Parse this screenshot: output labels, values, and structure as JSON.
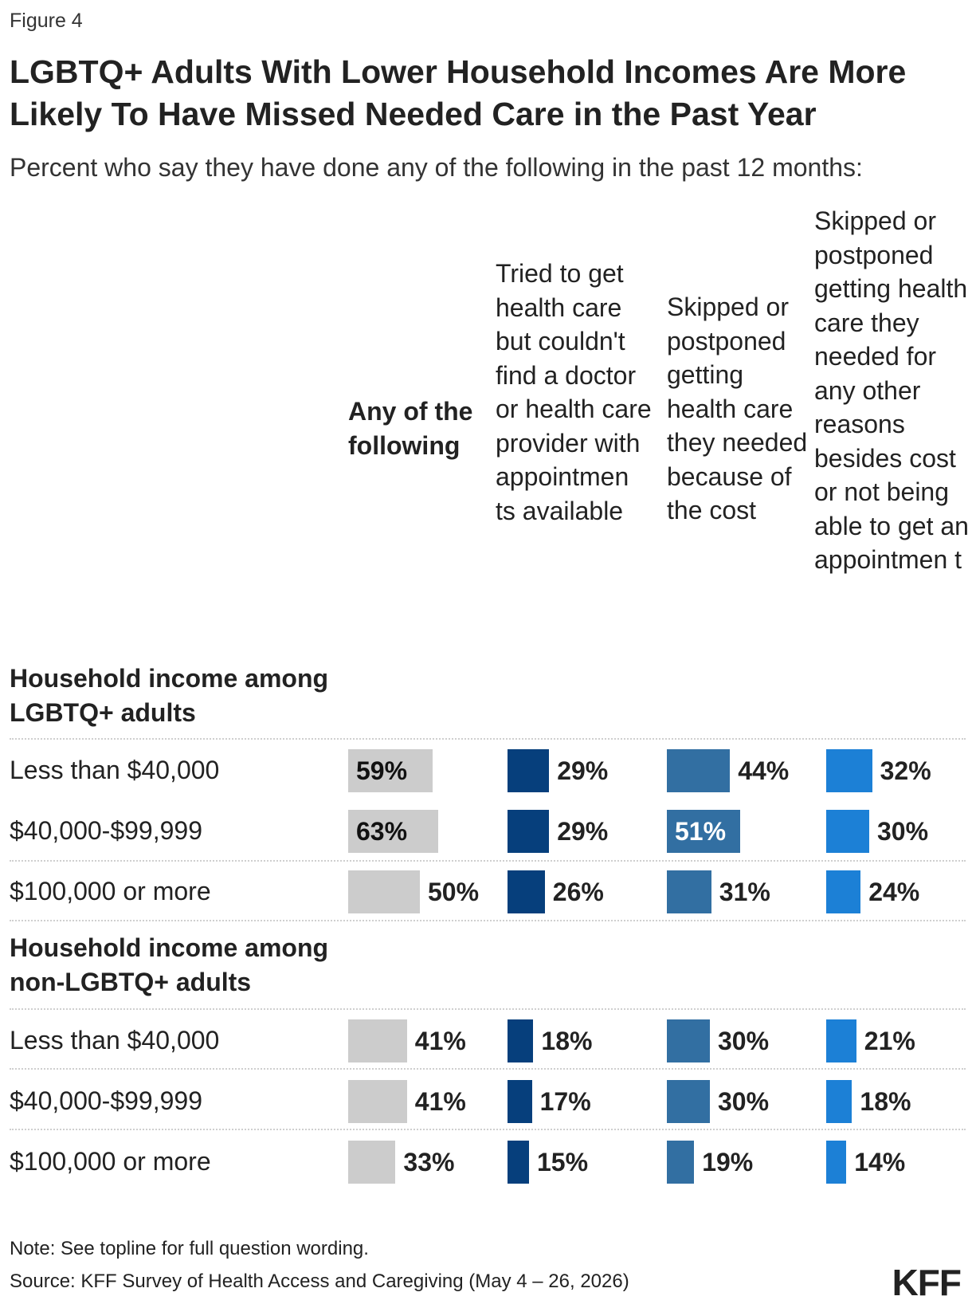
{
  "figure_label": "Figure 4",
  "title": "LGBTQ+ Adults With Lower Household Incomes Are More Likely To Have Missed Needed Care in the Past Year",
  "subtitle": "Percent who say they have done any of the following in the past 12 months:",
  "columns": [
    "Any of the following",
    "Tried to get health care but couldn't find a doctor or health care provider with appointmen ts available",
    "Skipped or postponed getting health care they needed because of the cost",
    "Skipped or postponed getting health care they needed for any other reasons besides cost or not being able to get an appointmen t"
  ],
  "colors": {
    "any": "#cccccc",
    "find": "#063f7c",
    "cost": "#326fa2",
    "other": "#1c80d6"
  },
  "chart_data": {
    "type": "bar",
    "xlim": [
      0,
      100
    ],
    "value_suffix": "%",
    "groups": [
      {
        "label": "Household income among LGBTQ+ adults",
        "rows": [
          {
            "label": "Less than $40,000",
            "values": [
              59,
              29,
              44,
              32
            ]
          },
          {
            "label": "$40,000-$99,999",
            "values": [
              63,
              29,
              51,
              30
            ]
          },
          {
            "label": "$100,000 or more",
            "values": [
              50,
              26,
              31,
              24
            ]
          }
        ]
      },
      {
        "label": "Household income among non-LGBTQ+ adults",
        "rows": [
          {
            "label": "Less than $40,000",
            "values": [
              41,
              18,
              30,
              21
            ]
          },
          {
            "label": "$40,000-$99,999",
            "values": [
              41,
              17,
              30,
              18
            ]
          },
          {
            "label": "$100,000 or more",
            "values": [
              33,
              15,
              19,
              14
            ]
          }
        ]
      }
    ]
  },
  "note": "Note: See topline for full question wording.",
  "source": "Source: KFF Survey of Health Access and Caregiving (May 4 – 26, 2026)",
  "logo": "KFF"
}
